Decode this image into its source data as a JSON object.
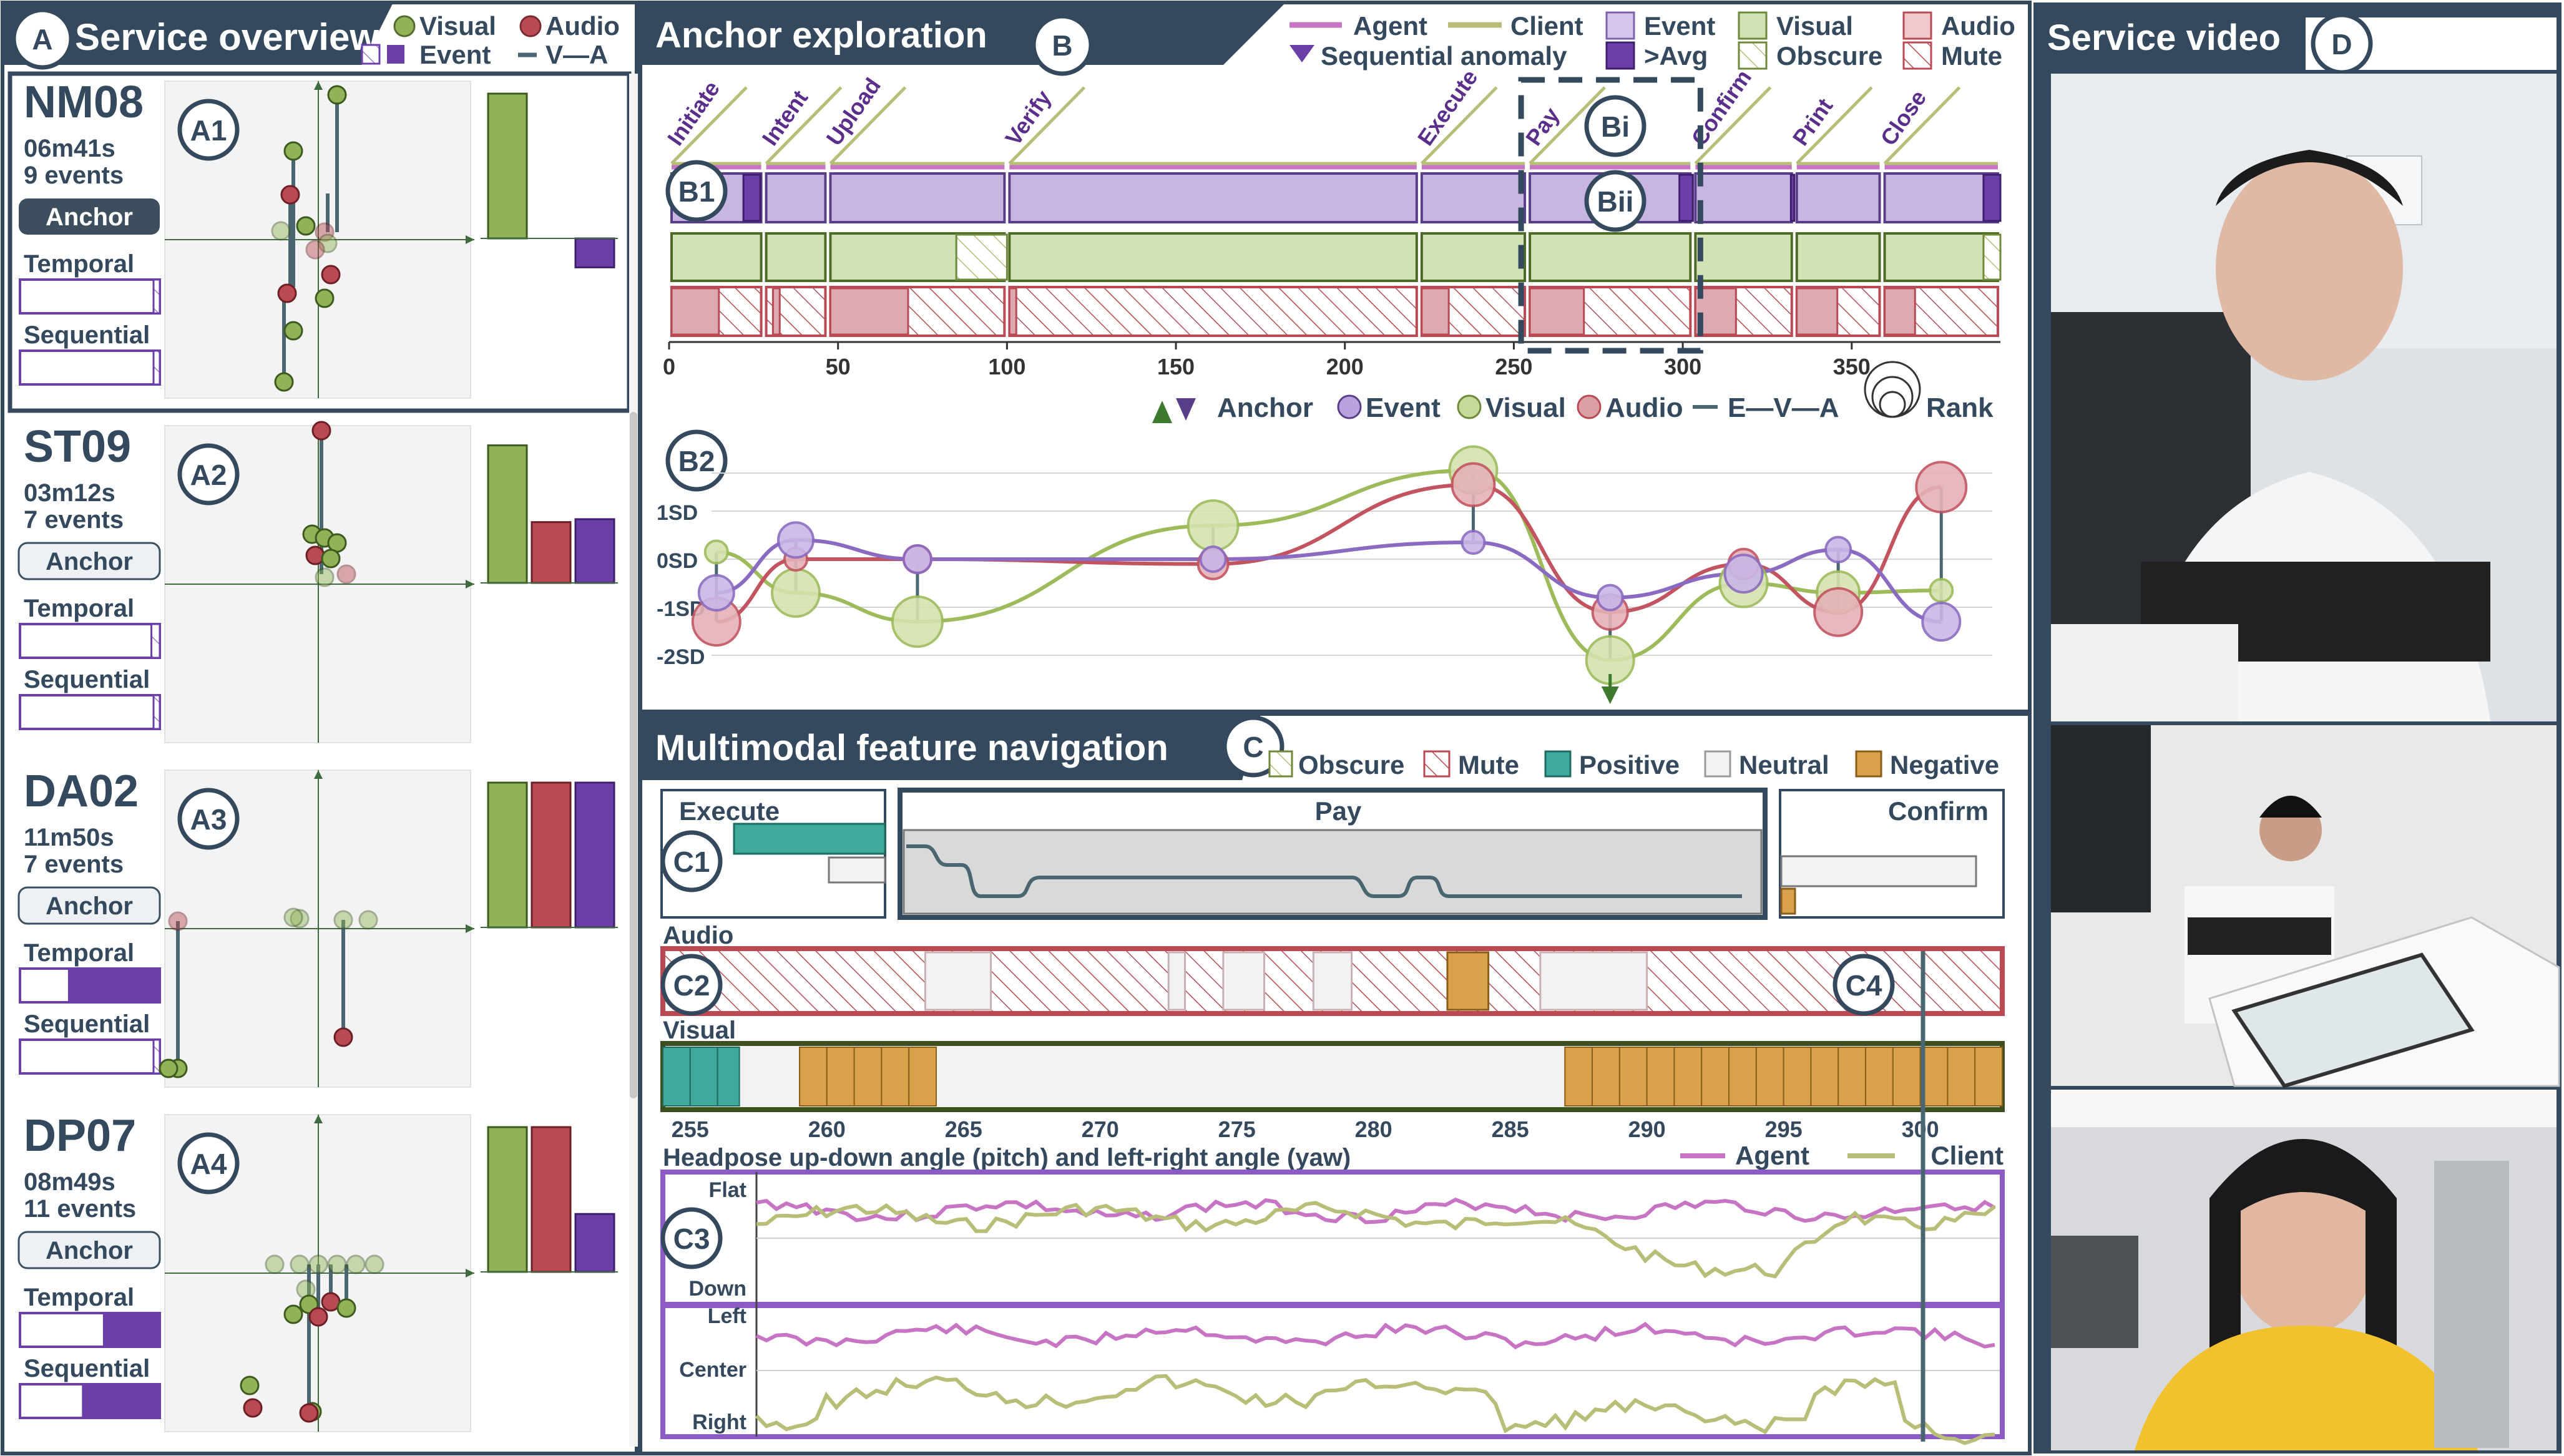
{
  "colors": {
    "frame": "#34495e",
    "dark": "#3d4f5e",
    "agent": "#c774c5",
    "client": "#b8be78",
    "event": "#9d80cc",
    "eventDark": "#6c3fa8",
    "visual": "#8fb356",
    "audio": "#b94a53",
    "audioLight": "#cf8e94",
    "positive": "#3fa99b",
    "neutral": "#f2f2f2",
    "negative": "#d9a24a",
    "purpleFrame": "#8c5bc5"
  },
  "panelA": {
    "label": "A",
    "title": "Service overview",
    "legend": {
      "visual": "Visual",
      "audio": "Audio",
      "event": "Event",
      "eva": "V—A"
    },
    "cards": [
      {
        "badge": "A1",
        "id": "NM08",
        "duration": "06m41s",
        "events": "9 events",
        "anchor": "Anchor",
        "anchor_active": true,
        "temporal": "Temporal",
        "sequential": "Sequential",
        "temporal_fill": 0.04,
        "sequential_fill": 0.04,
        "bars": {
          "visual": 1.0,
          "audio": 0.0,
          "event": -0.2
        }
      },
      {
        "badge": "A2",
        "id": "ST09",
        "duration": "03m12s",
        "events": "7 events",
        "anchor": "Anchor",
        "anchor_active": false,
        "temporal": "Temporal",
        "sequential": "Sequential",
        "temporal_fill": 0.06,
        "sequential_fill": 0.04,
        "bars": {
          "visual": 0.95,
          "audio": 0.42,
          "event": 0.44
        }
      },
      {
        "badge": "A3",
        "id": "DA02",
        "duration": "11m50s",
        "events": "7 events",
        "anchor": "Anchor",
        "anchor_active": false,
        "temporal": "Temporal",
        "sequential": "Sequential",
        "temporal_fill": 0.65,
        "sequential_fill": 0.04,
        "bars": {
          "visual": 1.0,
          "audio": 1.0,
          "event": 1.0
        }
      },
      {
        "badge": "A4",
        "id": "DP07",
        "duration": "08m49s",
        "events": "11 events",
        "anchor": "Anchor",
        "anchor_active": false,
        "temporal": "Temporal",
        "sequential": "Sequential",
        "temporal_fill": 0.4,
        "sequential_fill": 0.55,
        "bars": {
          "visual": 1.0,
          "audio": 1.0,
          "event": 0.4
        }
      }
    ]
  },
  "panelB": {
    "label": "B",
    "title": "Anchor exploration",
    "legend": {
      "agent": "Agent",
      "client": "Client",
      "event": "Event",
      "visual": "Visual",
      "audio": "Audio",
      "seq": "Sequential anomaly",
      "avg": ">Avg",
      "obscure": "Obscure",
      "mute": "Mute"
    },
    "badges": {
      "b1": "B1",
      "bi": "Bi",
      "bii": "Bii",
      "b2": "B2"
    },
    "stages": [
      {
        "name": "Initiate",
        "start": 0,
        "end": 28
      },
      {
        "name": "Intent",
        "start": 28,
        "end": 47
      },
      {
        "name": "Upload",
        "start": 47,
        "end": 100
      },
      {
        "name": "Verify",
        "start": 100,
        "end": 222
      },
      {
        "name": "Execute",
        "start": 222,
        "end": 254
      },
      {
        "name": "Pay",
        "start": 254,
        "end": 303
      },
      {
        "name": "Confirm",
        "start": 303,
        "end": 333
      },
      {
        "name": "Print",
        "start": 333,
        "end": 359
      },
      {
        "name": "Close",
        "start": 359,
        "end": 394
      }
    ],
    "axis_ticks": [
      "0",
      "50",
      "100",
      "150",
      "200",
      "250",
      "300",
      "350"
    ],
    "axis_range": [
      0,
      394
    ],
    "rank_legend": {
      "anchor": "Anchor",
      "event": "Event",
      "visual": "Visual",
      "audio": "Audio",
      "eva": "E—V—A",
      "rank": "Rank"
    },
    "sd_labels": [
      "1SD",
      "0SD",
      "-1SD",
      "-2SD"
    ],
    "rank_points": {
      "event": [
        -0.7,
        0.4,
        0.0,
        0.0,
        0.35,
        -0.8,
        -0.3,
        0.2,
        -1.3
      ],
      "visual": [
        0.15,
        -0.7,
        -1.3,
        0.7,
        1.85,
        -2.1,
        -0.5,
        -0.7,
        -0.65
      ],
      "audio": [
        -1.3,
        0.0,
        0.0,
        -0.1,
        1.55,
        -1.1,
        -0.1,
        -1.1,
        1.5
      ]
    }
  },
  "panelC": {
    "label": "C",
    "title": "Multimodal feature navigation",
    "legend": {
      "obscure": "Obscure",
      "mute": "Mute",
      "positive": "Positive",
      "neutral": "Neutral",
      "negative": "Negative"
    },
    "badges": {
      "c1": "C1",
      "c2": "C2",
      "c3": "C3",
      "c4": "C4"
    },
    "stages": {
      "left": "Execute",
      "center": "Pay",
      "right": "Confirm"
    },
    "audio_label": "Audio",
    "visual_label": "Visual",
    "axis_ticks": [
      "255",
      "260",
      "265",
      "270",
      "275",
      "280",
      "285",
      "290",
      "295",
      "300"
    ],
    "axis_range": [
      254,
      303
    ],
    "cursor_time": 300.1,
    "headpose_title": "Headpose up-down angle (pitch) and left-right angle (yaw)",
    "headpose_legend": {
      "agent": "Agent",
      "client": "Client"
    },
    "pitch_labels": [
      "Flat",
      "Down"
    ],
    "yaw_labels": [
      "Left",
      "Center",
      "Right"
    ],
    "visual_segments": [
      {
        "start": 254,
        "end": 256.8,
        "kind": "positive"
      },
      {
        "start": 256.8,
        "end": 259,
        "kind": "neutral"
      },
      {
        "start": 259,
        "end": 264,
        "kind": "negative"
      },
      {
        "start": 264,
        "end": 287,
        "kind": "neutral"
      },
      {
        "start": 287,
        "end": 303,
        "kind": "negative"
      }
    ],
    "audio_segments": [
      {
        "start": 263.6,
        "end": 266,
        "kind": "neutral"
      },
      {
        "start": 272.5,
        "end": 273.1,
        "kind": "neutral"
      },
      {
        "start": 274.5,
        "end": 276,
        "kind": "neutral"
      },
      {
        "start": 277.8,
        "end": 279.2,
        "kind": "neutral"
      },
      {
        "start": 282.7,
        "end": 284.2,
        "kind": "negative"
      },
      {
        "start": 286.1,
        "end": 290,
        "kind": "neutral"
      }
    ]
  },
  "panelD": {
    "label": "D",
    "title": "Service video"
  }
}
